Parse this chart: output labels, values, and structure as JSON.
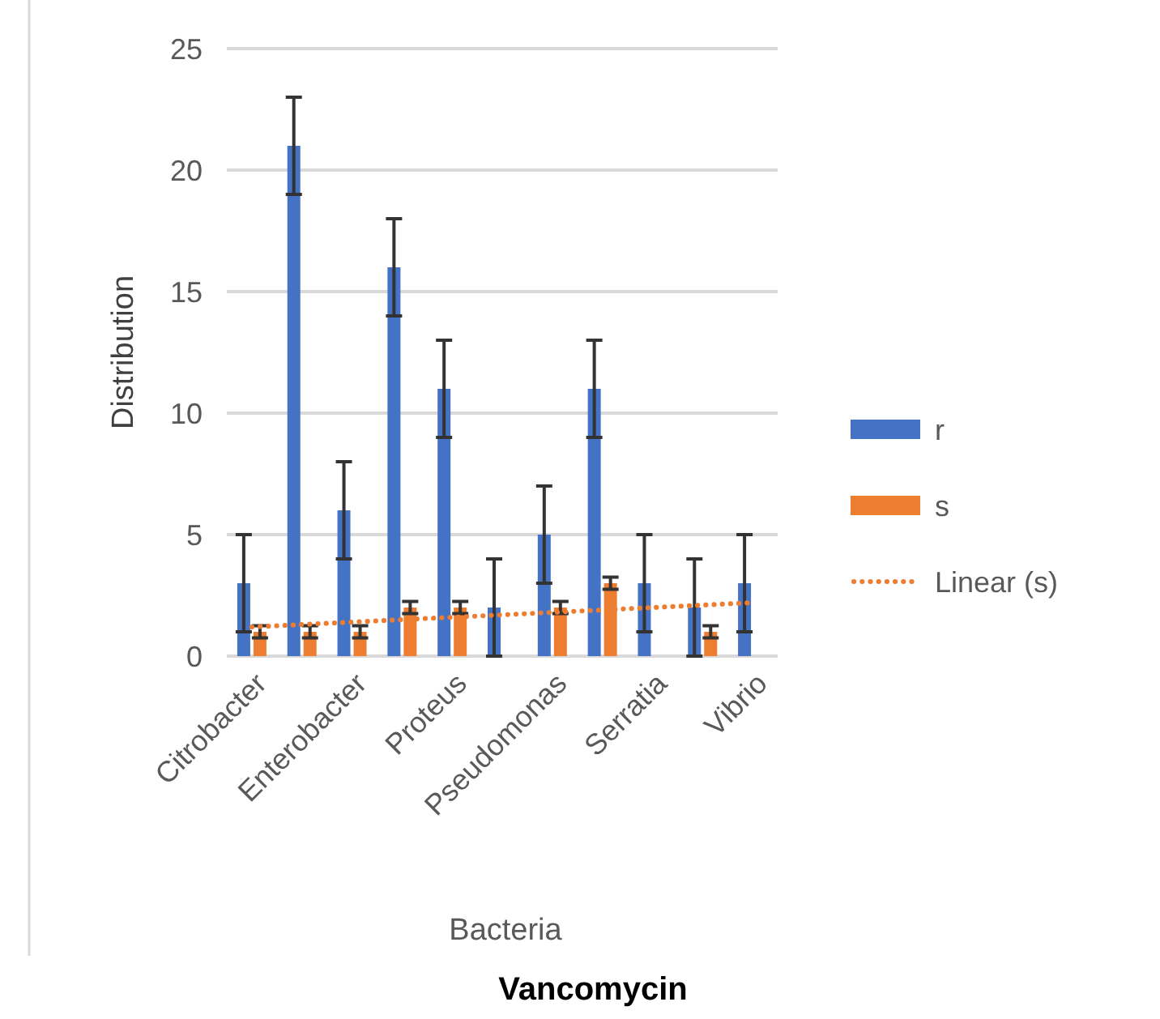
{
  "chart_data": {
    "type": "bar",
    "title": "Vancomycin",
    "xlabel": "Bacteria",
    "ylabel": "Distribution",
    "categories": [
      "Citrobacter",
      null,
      "Enterobacter",
      null,
      "Proteus",
      null,
      "Pseudomonas",
      null,
      "Serratia",
      null,
      "Vibrio"
    ],
    "series": [
      {
        "name": "r",
        "color": "#4472c4",
        "values": [
          3,
          21,
          6,
          16,
          11,
          2,
          5,
          11,
          3,
          2,
          3
        ],
        "errors": [
          2,
          2,
          2,
          2,
          2,
          2,
          2,
          2,
          2,
          2,
          2
        ]
      },
      {
        "name": "s",
        "color": "#ed7d31",
        "values": [
          1,
          1,
          1,
          2,
          2,
          null,
          2,
          3,
          null,
          1,
          null
        ],
        "errors": [
          0.25,
          0.25,
          0.25,
          0.25,
          0.25,
          null,
          0.25,
          0.25,
          null,
          0.25,
          null
        ]
      },
      {
        "name": "Linear (s)",
        "type": "line",
        "color": "#ed7d31",
        "line_style": "dotted",
        "marker": "none",
        "values": [
          1.2,
          1.3,
          1.4,
          1.5,
          1.6,
          1.7,
          1.8,
          1.9,
          2.0,
          2.1,
          2.2
        ]
      }
    ],
    "ylim": [
      0,
      25
    ],
    "yticks": [
      0,
      5,
      10,
      15,
      20,
      25
    ],
    "grid": "y",
    "legend": "right"
  }
}
